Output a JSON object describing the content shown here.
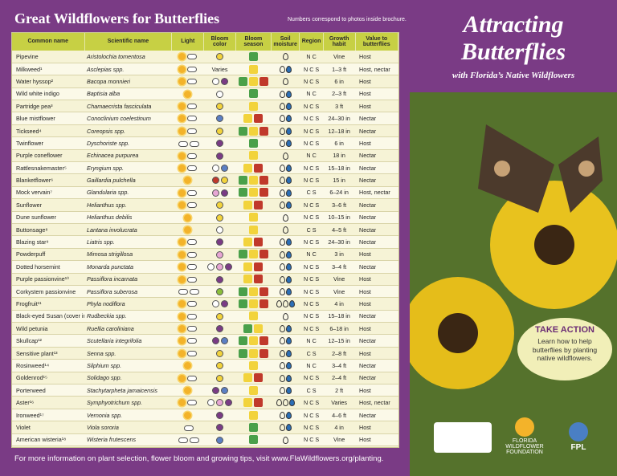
{
  "header": {
    "title": "Great Wildflowers for Butterflies",
    "note": "Numbers correspond to photos inside brochure."
  },
  "columns": [
    "Common name",
    "Scientific name",
    "Light",
    "Bloom color",
    "Bloom season",
    "Soil moisture",
    "Region",
    "Growth habit",
    "Value to butterflies"
  ],
  "rows": [
    {
      "common": "Pipevine",
      "scientific": "Aristolochia tomentosa",
      "light": "sun-cloud",
      "colors": [
        "#f2d33c"
      ],
      "season": [
        "green"
      ],
      "drops": 1,
      "region": "N C",
      "habit": "Vine",
      "value": "Host"
    },
    {
      "common": "Milkweed¹",
      "scientific": "Asclepias spp.",
      "light": "sun-cloud",
      "colors": [],
      "colorsText": "Varies",
      "season": [
        "yellow"
      ],
      "drops": 2,
      "region": "N C S",
      "habit": "1–3 ft",
      "value": "Host, nectar"
    },
    {
      "common": "Water hyssop²",
      "scientific": "Bacopa monnieri",
      "light": "sun-cloud",
      "colors": [
        "#fff",
        "#7a3b85"
      ],
      "season": [
        "green",
        "yellow",
        "red"
      ],
      "drops": 1,
      "region": "N C S",
      "habit": "6 in",
      "value": "Host"
    },
    {
      "common": "Wild white indigo",
      "scientific": "Baptisia alba",
      "light": "sun",
      "colors": [
        "#fff"
      ],
      "season": [
        "green"
      ],
      "drops": 2,
      "region": "N C",
      "habit": "2–3 ft",
      "value": "Host"
    },
    {
      "common": "Partridge pea³",
      "scientific": "Chamaecrista fasciculata",
      "light": "sun-cloud",
      "colors": [
        "#f2d33c"
      ],
      "season": [
        "yellow"
      ],
      "drops": 2,
      "region": "N C S",
      "habit": "3 ft",
      "value": "Host"
    },
    {
      "common": "Blue mistflower",
      "scientific": "Conoclinium coelestinum",
      "light": "sun-cloud",
      "colors": [
        "#5b7fc4"
      ],
      "season": [
        "yellow",
        "red"
      ],
      "drops": 2,
      "region": "N C S",
      "habit": "24–30 in",
      "value": "Nectar"
    },
    {
      "common": "Tickseed⁴",
      "scientific": "Coreopsis spp.",
      "light": "sun-cloud",
      "colors": [
        "#f2d33c"
      ],
      "season": [
        "green",
        "yellow",
        "red"
      ],
      "drops": 2,
      "region": "N C S",
      "habit": "12–18 in",
      "value": "Nectar"
    },
    {
      "common": "Twinflower",
      "scientific": "Dyschoriste spp.",
      "light": "cloud-cloud",
      "colors": [
        "#7a3b85"
      ],
      "season": [
        "green"
      ],
      "drops": 2,
      "region": "N C S",
      "habit": "6 in",
      "value": "Host"
    },
    {
      "common": "Purple coneflower",
      "scientific": "Echinacea purpurea",
      "light": "sun-cloud",
      "colors": [
        "#7a3b85"
      ],
      "season": [
        "yellow"
      ],
      "drops": 1,
      "region": "N C",
      "habit": "18 in",
      "value": "Nectar"
    },
    {
      "common": "Rattlesnakemaster⁵",
      "scientific": "Eryngium spp.",
      "light": "sun-cloud",
      "colors": [
        "#fff",
        "#5b7fc4"
      ],
      "season": [
        "yellow",
        "red"
      ],
      "drops": 2,
      "region": "N C S",
      "habit": "15–18 in",
      "value": "Nectar"
    },
    {
      "common": "Blanketflower⁶",
      "scientific": "Gaillardia pulchella",
      "light": "sun",
      "colors": [
        "#c0392b",
        "#f2d33c"
      ],
      "season": [
        "green",
        "yellow",
        "red"
      ],
      "drops": 2,
      "region": "N C S",
      "habit": "15 in",
      "value": "Nectar"
    },
    {
      "common": "Mock vervain⁷",
      "scientific": "Glandularia spp.",
      "light": "sun-cloud",
      "colors": [
        "#e7a6d4",
        "#7a3b85"
      ],
      "season": [
        "green",
        "yellow",
        "red"
      ],
      "drops": 2,
      "region": "C S",
      "habit": "6–24 in",
      "value": "Host, nectar"
    },
    {
      "common": "Sunflower",
      "scientific": "Helianthus spp.",
      "light": "sun-cloud",
      "colors": [
        "#f2d33c"
      ],
      "season": [
        "yellow",
        "red"
      ],
      "drops": 2,
      "region": "N C S",
      "habit": "3–6 ft",
      "value": "Nectar"
    },
    {
      "common": "Dune sunflower",
      "scientific": "Helianthus debilis",
      "light": "sun",
      "colors": [
        "#f2d33c"
      ],
      "season": [
        "yellow"
      ],
      "drops": 1,
      "region": "N C S",
      "habit": "10–15 in",
      "value": "Nectar"
    },
    {
      "common": "Buttonsage⁸",
      "scientific": "Lantana involucrata",
      "light": "sun",
      "colors": [
        "#fff"
      ],
      "season": [
        "yellow"
      ],
      "drops": 1,
      "region": "C S",
      "habit": "4–5 ft",
      "value": "Nectar"
    },
    {
      "common": "Blazing star⁹",
      "scientific": "Liatris spp.",
      "light": "sun-cloud",
      "colors": [
        "#7a3b85"
      ],
      "season": [
        "yellow",
        "red"
      ],
      "drops": 2,
      "region": "N C S",
      "habit": "24–30 in",
      "value": "Nectar"
    },
    {
      "common": "Powderpuff",
      "scientific": "Mimosa strigillosa",
      "light": "sun-cloud",
      "colors": [
        "#e7a6d4"
      ],
      "season": [
        "green",
        "yellow",
        "red"
      ],
      "drops": 2,
      "region": "N C",
      "habit": "3 in",
      "value": "Host"
    },
    {
      "common": "Dotted horsemint",
      "scientific": "Monarda punctata",
      "light": "sun-cloud",
      "colors": [
        "#fff",
        "#e7a6d4",
        "#7a3b85"
      ],
      "season": [
        "yellow",
        "red"
      ],
      "drops": 2,
      "region": "N C S",
      "habit": "3–4 ft",
      "value": "Nectar"
    },
    {
      "common": "Purple passionvine¹⁰",
      "scientific": "Passiflora incarnata",
      "light": "sun-cloud",
      "colors": [
        "#7a3b85"
      ],
      "season": [
        "yellow",
        "red"
      ],
      "drops": 2,
      "region": "N C S",
      "habit": "Vine",
      "value": "Host"
    },
    {
      "common": "Corkystem passionvine",
      "scientific": "Passiflora suberosa",
      "light": "cloud-cloud",
      "colors": [
        "#8bbf3a"
      ],
      "season": [
        "green",
        "yellow",
        "red"
      ],
      "drops": 2,
      "region": "N C S",
      "habit": "Vine",
      "value": "Host"
    },
    {
      "common": "Frogfruit¹¹",
      "scientific": "Phyla nodiflora",
      "light": "sun-cloud",
      "colors": [
        "#fff",
        "#7a3b85"
      ],
      "season": [
        "green",
        "yellow",
        "red"
      ],
      "drops": 3,
      "region": "N C S",
      "habit": "4 in",
      "value": "Host"
    },
    {
      "common": "Black-eyed Susan (cover image)",
      "scientific": "Rudbeckia spp.",
      "light": "sun-cloud",
      "colors": [
        "#f2d33c"
      ],
      "season": [
        "yellow"
      ],
      "drops": 1,
      "region": "N C S",
      "habit": "15–18 in",
      "value": "Nectar"
    },
    {
      "common": "Wild petunia",
      "scientific": "Ruellia caroliniana",
      "light": "sun-cloud",
      "colors": [
        "#7a3b85"
      ],
      "season": [
        "green",
        "yellow"
      ],
      "drops": 2,
      "region": "N C S",
      "habit": "6–18 in",
      "value": "Host"
    },
    {
      "common": "Skullcap¹²",
      "scientific": "Scutellaria integrifolia",
      "light": "sun-cloud",
      "colors": [
        "#7a3b85",
        "#5b7fc4"
      ],
      "season": [
        "green",
        "yellow",
        "red"
      ],
      "drops": 2,
      "region": "N C",
      "habit": "12–15 in",
      "value": "Nectar"
    },
    {
      "common": "Sensitive plant¹³",
      "scientific": "Senna spp.",
      "light": "sun-cloud",
      "colors": [
        "#f2d33c"
      ],
      "season": [
        "green",
        "yellow",
        "red"
      ],
      "drops": 2,
      "region": "C S",
      "habit": "2–8 ft",
      "value": "Host"
    },
    {
      "common": "Rosinweed¹⁴",
      "scientific": "Silphium spp.",
      "light": "sun",
      "colors": [
        "#f2d33c"
      ],
      "season": [
        "yellow"
      ],
      "drops": 2,
      "region": "N C",
      "habit": "3–4 ft",
      "value": "Nectar"
    },
    {
      "common": "Goldenrod¹⁵",
      "scientific": "Solidago spp.",
      "light": "sun-cloud",
      "colors": [
        "#f2d33c"
      ],
      "season": [
        "yellow",
        "red"
      ],
      "drops": 2,
      "region": "N C S",
      "habit": "2–4 ft",
      "value": "Nectar"
    },
    {
      "common": "Porterweed",
      "scientific": "Stachytarpheta jamaicensis",
      "light": "sun",
      "colors": [
        "#7a3b85",
        "#5b7fc4"
      ],
      "season": [
        "yellow"
      ],
      "drops": 2,
      "region": "C S",
      "habit": "2 ft",
      "value": "Host"
    },
    {
      "common": "Aster¹⁶",
      "scientific": "Symphyotrichum spp.",
      "light": "sun-cloud",
      "colors": [
        "#fff",
        "#e7a6d4",
        "#7a3b85"
      ],
      "season": [
        "yellow",
        "red"
      ],
      "drops": 3,
      "region": "N C S",
      "habit": "Varies",
      "value": "Host, nectar"
    },
    {
      "common": "Ironweed¹⁷",
      "scientific": "Vernonia spp.",
      "light": "sun",
      "colors": [
        "#7a3b85"
      ],
      "season": [
        "yellow"
      ],
      "drops": 2,
      "region": "N C S",
      "habit": "4–6 ft",
      "value": "Nectar"
    },
    {
      "common": "Violet",
      "scientific": "Viola sororia",
      "light": "cloud",
      "colors": [
        "#7a3b85"
      ],
      "season": [
        "green"
      ],
      "drops": 2,
      "region": "N C S",
      "habit": "4 in",
      "value": "Host"
    },
    {
      "common": "American wisteria¹⁸",
      "scientific": "Wisteria frutescens",
      "light": "cloud-cloud",
      "colors": [
        "#5b7fc4"
      ],
      "season": [
        "green"
      ],
      "drops": 1,
      "region": "N C S",
      "habit": "Vine",
      "value": "Host"
    }
  ],
  "footer": "For more information on plant selection, flower bloom and growing tips, visit www.FlaWildflowers.org/planting.",
  "right": {
    "title1": "Attracting",
    "title2": "Butterflies",
    "subtitle": "with Florida’s Native Wildflowers",
    "action_title": "TAKE ACTION",
    "action_body": "Learn how to help butterflies by planting native wildflowers.",
    "logo1": "FLORIDA WILDFLOWER FOUNDATION",
    "logo2": "FPL"
  }
}
